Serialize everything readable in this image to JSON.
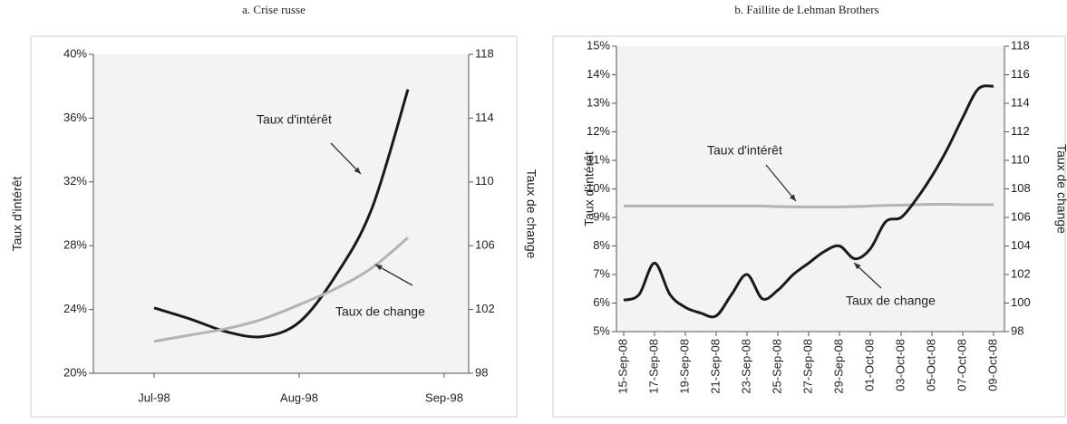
{
  "chart_data": [
    {
      "type": "line",
      "title": "a. Crise russe",
      "ylabel": "Taux d'intérêt",
      "y2label": "Taux de change",
      "categories": [
        "Jul-98",
        null,
        null,
        null,
        "Aug-98",
        null,
        null,
        null,
        "Sep-98"
      ],
      "series": [
        {
          "name": "Taux d'intérêt",
          "color": "#1a1a1a",
          "values": [
            24.1,
            23.4,
            22.6,
            22.3,
            23.2,
            26.1,
            30.3,
            37.8,
            null
          ]
        },
        {
          "name": "Taux de change",
          "color": "#b3b3b3",
          "axis": "y2",
          "values": [
            100.0,
            100.4,
            100.8,
            101.4,
            102.3,
            103.3,
            104.6,
            106.5,
            null
          ]
        }
      ],
      "ylim": [
        20,
        40
      ],
      "yticks": [
        {
          "value": 20,
          "label": "20%"
        },
        {
          "value": 24,
          "label": "24%"
        },
        {
          "value": 28,
          "label": "28%"
        },
        {
          "value": 32,
          "label": "32%"
        },
        {
          "value": 36,
          "label": "36%"
        },
        {
          "value": 40,
          "label": "40%"
        }
      ],
      "y2lim": [
        98,
        118
      ],
      "y2ticks": [
        98,
        102,
        106,
        110,
        114,
        118
      ]
    },
    {
      "type": "line",
      "title": "b. Faillite de Lehman Brothers",
      "ylabel": "Taux d'intérêt",
      "y2label": "Taux de change",
      "categories": [
        "15-Sep-08",
        null,
        "17-Sep-08",
        null,
        "19-Sep-08",
        null,
        "21-Sep-08",
        null,
        "23-Sep-08",
        null,
        "25-Sep-08",
        null,
        "27-Sep-08",
        null,
        "29-Sep-08",
        null,
        "01-Oct-08",
        null,
        "03-Oct-08",
        null,
        "05-Oct-08",
        null,
        "07-Oct-08",
        null,
        "09-Oct-08"
      ],
      "series": [
        {
          "name": "Taux d'intérêt",
          "color": "#b3b3b3",
          "values": [
            9.4,
            9.4,
            9.4,
            9.4,
            9.4,
            9.4,
            9.4,
            9.4,
            9.4,
            9.4,
            9.38,
            9.37,
            9.37,
            9.37,
            9.37,
            9.38,
            9.4,
            9.42,
            9.43,
            9.45,
            9.46,
            9.46,
            9.45,
            9.45,
            9.45
          ]
        },
        {
          "name": "Taux de change",
          "color": "#1a1a1a",
          "axis": "y2",
          "values": [
            100.2,
            100.6,
            102.8,
            100.6,
            99.7,
            99.3,
            99.1,
            100.6,
            102.0,
            100.3,
            100.9,
            102.0,
            102.8,
            103.6,
            104.0,
            103.1,
            103.8,
            105.7,
            106.0,
            107.3,
            108.9,
            110.8,
            113.0,
            115.0,
            115.2
          ]
        }
      ],
      "ylim": [
        5,
        15
      ],
      "yticks": [
        {
          "value": 5,
          "label": "5%"
        },
        {
          "value": 6,
          "label": "6%"
        },
        {
          "value": 7,
          "label": "7%"
        },
        {
          "value": 8,
          "label": "8%"
        },
        {
          "value": 9,
          "label": "9%"
        },
        {
          "value": 10,
          "label": "10%"
        },
        {
          "value": 11,
          "label": "11%"
        },
        {
          "value": 12,
          "label": "12%"
        },
        {
          "value": 13,
          "label": "13%"
        },
        {
          "value": 14,
          "label": "14%"
        },
        {
          "value": 15,
          "label": "15%"
        }
      ],
      "y2lim": [
        98,
        118
      ],
      "y2ticks": [
        98,
        100,
        102,
        104,
        106,
        108,
        110,
        112,
        114,
        116,
        118
      ]
    }
  ]
}
